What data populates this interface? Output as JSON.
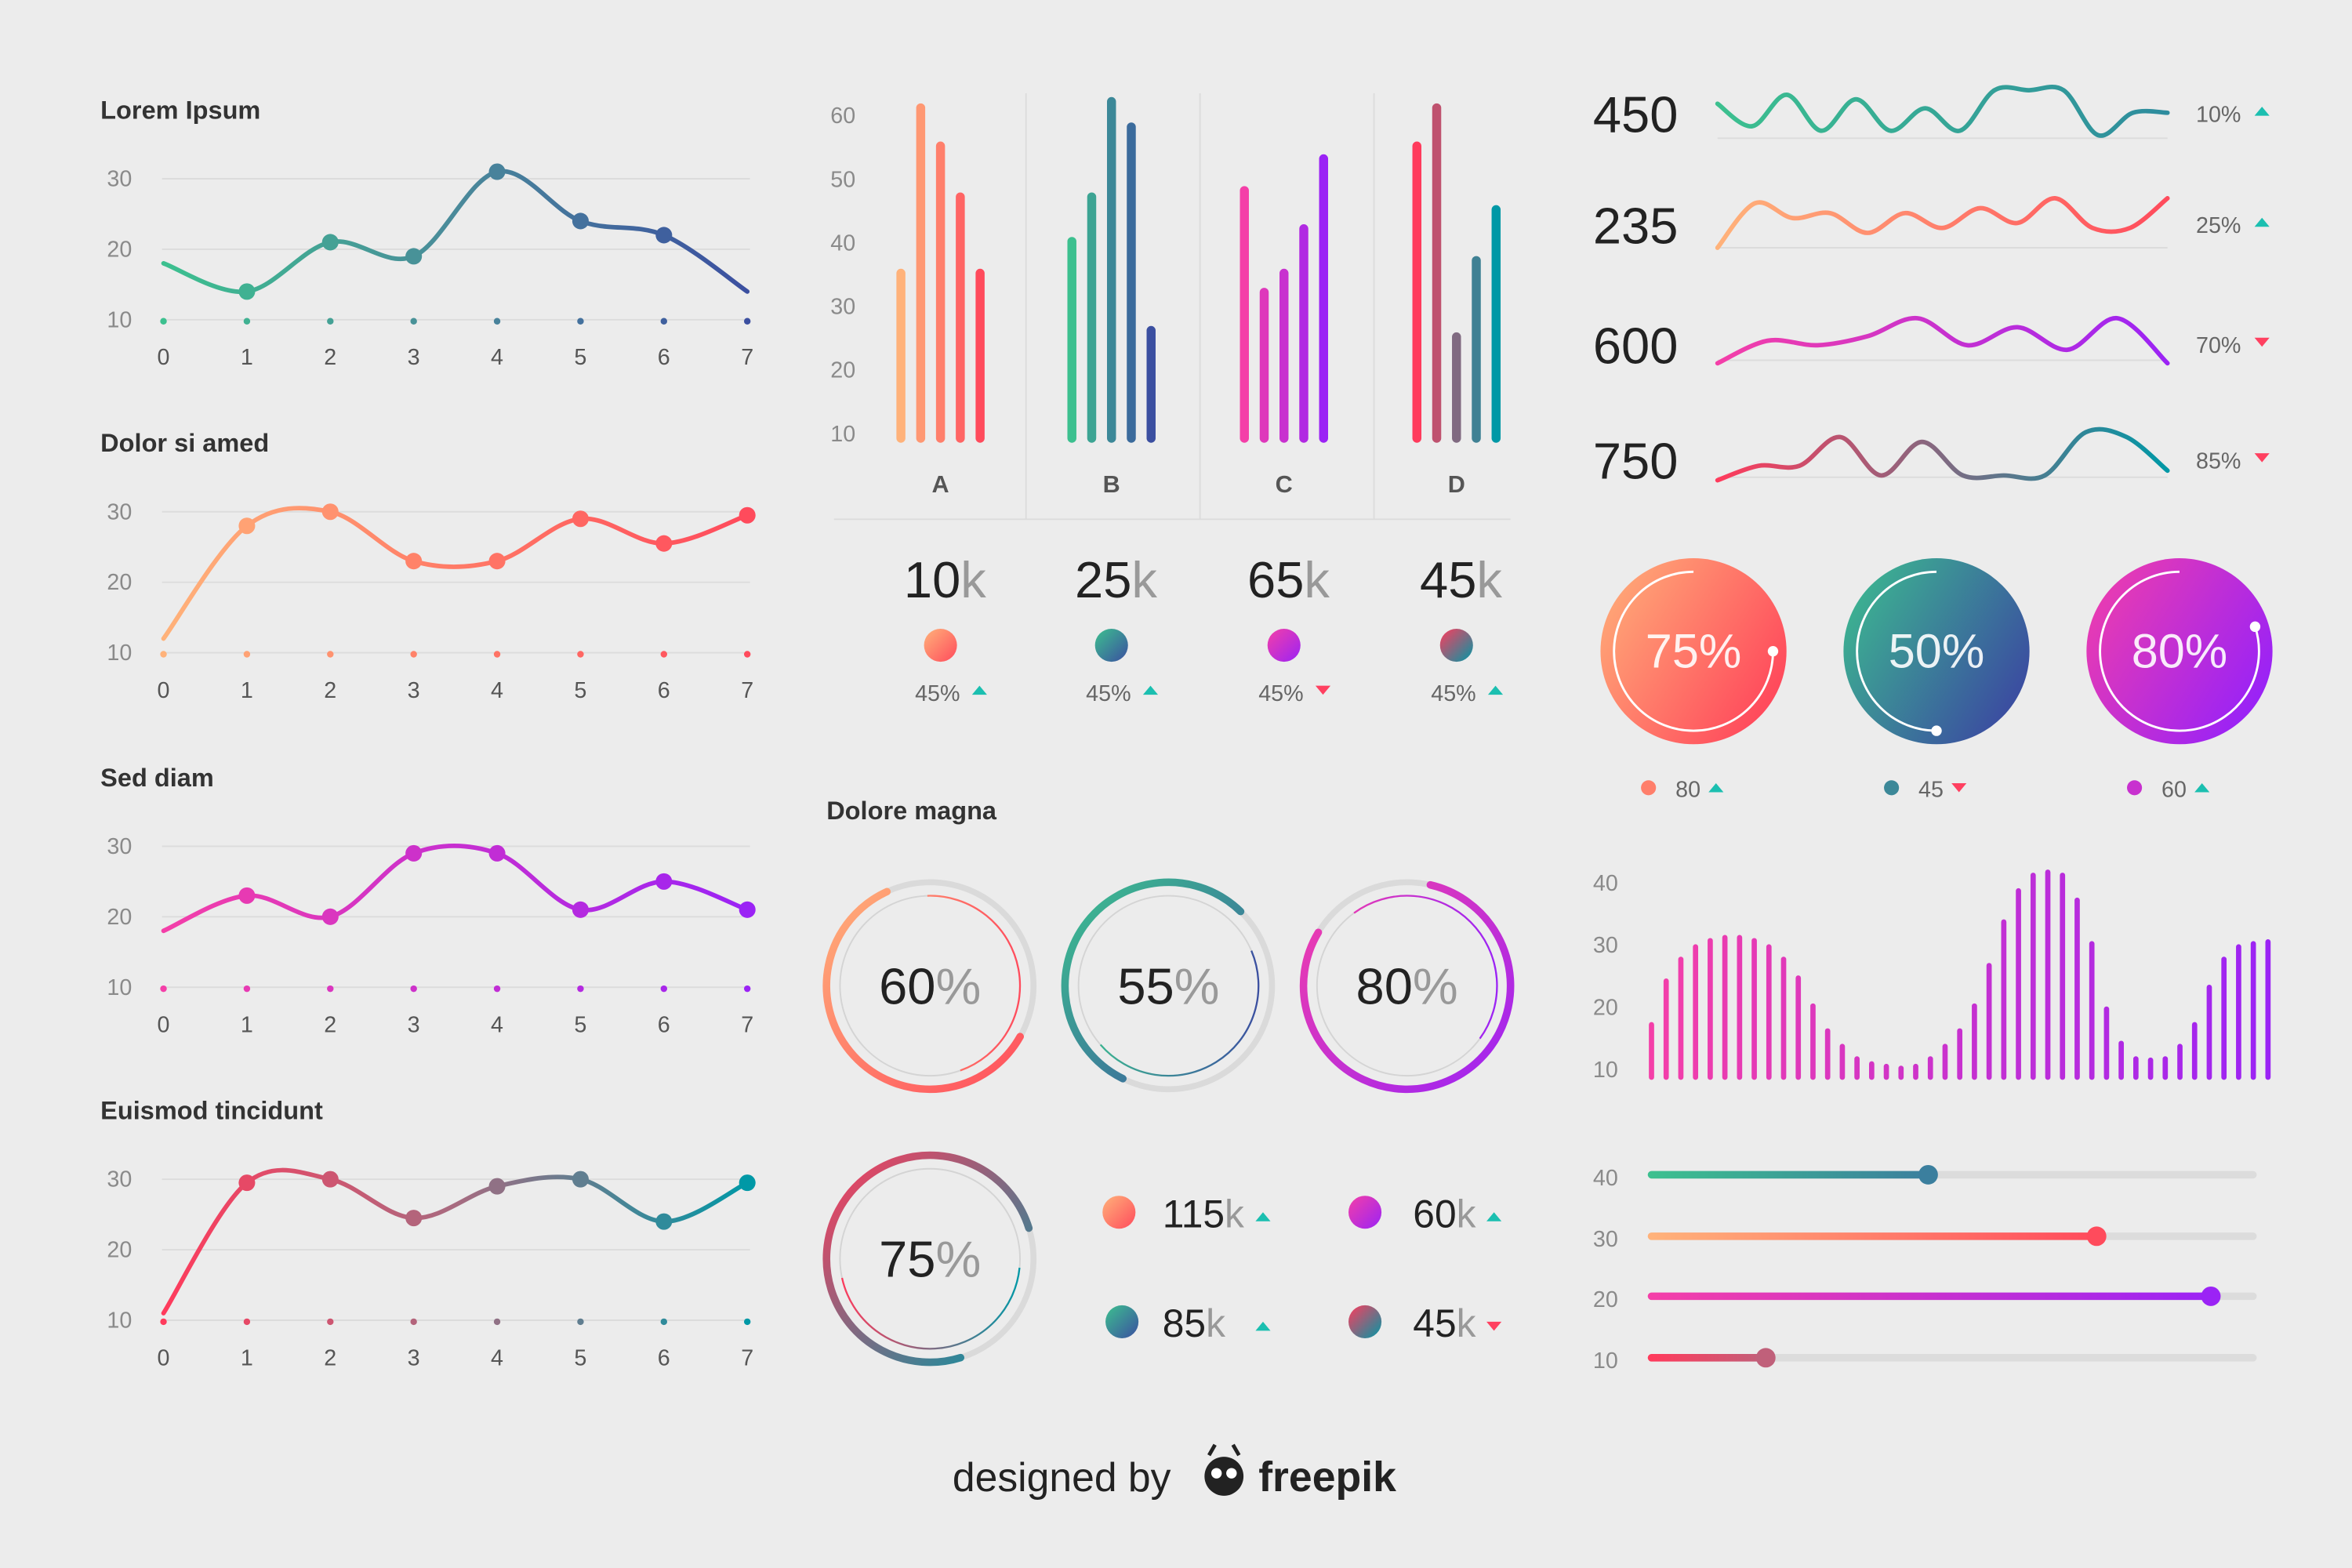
{
  "colors": {
    "up": "#1bbfb0",
    "down": "#ff4060",
    "axis_text": "#8a8a8a",
    "grid": "#dcdcdc",
    "background": "#ececec"
  },
  "line_charts": [
    {
      "title": "Lorem Ipsum",
      "x_ticks": [
        0,
        1,
        2,
        3,
        4,
        5,
        6,
        7
      ],
      "y_ticks": [
        10,
        20,
        30
      ],
      "values": [
        18,
        14,
        21,
        19,
        31,
        24,
        22,
        14
      ],
      "dots": [
        1,
        2,
        3,
        4,
        5,
        6
      ],
      "colors": [
        "#3cc08f",
        "#4a8a9a",
        "#3b4fa0"
      ]
    },
    {
      "title": "Dolor si amed",
      "x_ticks": [
        0,
        1,
        2,
        3,
        4,
        5,
        6,
        7
      ],
      "y_ticks": [
        10,
        20,
        30
      ],
      "values": [
        12,
        28,
        30,
        23,
        23,
        29,
        25.5,
        29.5
      ],
      "dots": [
        1,
        2,
        3,
        4,
        5,
        6,
        7
      ],
      "colors": [
        "#ffb27a",
        "#ff7a66",
        "#ff4b5c"
      ]
    },
    {
      "title": "Sed diam",
      "x_ticks": [
        0,
        1,
        2,
        3,
        4,
        5,
        6,
        7
      ],
      "y_ticks": [
        10,
        20,
        30
      ],
      "values": [
        18,
        23,
        20,
        29,
        29,
        21,
        25,
        21
      ],
      "dots": [
        1,
        2,
        3,
        4,
        5,
        6,
        7
      ],
      "colors": [
        "#f43fa8",
        "#c72fd0",
        "#9b23f5"
      ]
    },
    {
      "title": "Euismod tincidunt",
      "x_ticks": [
        0,
        1,
        2,
        3,
        4,
        5,
        6,
        7
      ],
      "y_ticks": [
        10,
        20,
        30
      ],
      "values": [
        11,
        29.5,
        30,
        24.5,
        29,
        30,
        24,
        29.5
      ],
      "dots": [
        1,
        2,
        3,
        4,
        5,
        6,
        7
      ],
      "colors": [
        "#ff3b5c",
        "#a86b80",
        "#0098a6"
      ]
    }
  ],
  "bar_chart": {
    "y_ticks": [
      10,
      20,
      30,
      40,
      50,
      60
    ],
    "groups": [
      {
        "label": "A",
        "values": [
          35,
          61,
          55,
          47,
          35
        ],
        "total": "10",
        "unit": "k",
        "change": "45%",
        "trend": "up",
        "colors": [
          "#ffb27a",
          "#ff4b5c"
        ]
      },
      {
        "label": "B",
        "values": [
          40,
          47,
          62,
          58,
          26
        ],
        "total": "25",
        "unit": "k",
        "change": "45%",
        "trend": "up",
        "colors": [
          "#3cc08f",
          "#3b4fa0"
        ]
      },
      {
        "label": "C",
        "values": [
          48,
          32,
          35,
          42,
          53
        ],
        "total": "65",
        "unit": "k",
        "change": "45%",
        "trend": "down",
        "colors": [
          "#f43fa8",
          "#9b23f5"
        ]
      },
      {
        "label": "D",
        "values": [
          55,
          61,
          25,
          37,
          45
        ],
        "total": "45",
        "unit": "k",
        "change": "45%",
        "trend": "up",
        "colors": [
          "#ff3b5c",
          "#0098a6"
        ]
      }
    ]
  },
  "sparklines": [
    {
      "value": "450",
      "change": "10%",
      "trend": "up",
      "values": [
        7,
        2,
        9,
        1,
        8,
        1,
        6,
        1,
        10,
        10,
        10,
        0,
        5,
        5
      ],
      "colors": [
        "#3cc08f",
        "#2e8c9e"
      ]
    },
    {
      "value": "235",
      "change": "25%",
      "trend": "up",
      "values": [
        0,
        9,
        6,
        7,
        3,
        7,
        4,
        8,
        5,
        10,
        4,
        4,
        10
      ],
      "colors": [
        "#ffb27a",
        "#ff4b5c"
      ]
    },
    {
      "value": "600",
      "change": "70%",
      "trend": "down",
      "values": [
        0,
        5,
        4,
        6,
        10,
        4,
        8,
        3,
        10,
        0
      ],
      "colors": [
        "#f43fa8",
        "#9b23f5"
      ]
    },
    {
      "value": "750",
      "change": "85%",
      "trend": "down",
      "values": [
        0,
        3,
        3,
        9,
        1,
        8,
        1,
        1,
        1,
        10,
        9,
        2
      ],
      "colors": [
        "#ff3b5c",
        "#0098a6"
      ]
    }
  ],
  "donuts": [
    {
      "percent": 75,
      "label": "75%",
      "value": "80",
      "trend": "up",
      "colors": [
        "#ffb27a",
        "#ff4b5c"
      ]
    },
    {
      "percent": 50,
      "label": "50%",
      "value": "45",
      "trend": "down",
      "colors": [
        "#3cc08f",
        "#3b4fa0"
      ]
    },
    {
      "percent": 80,
      "label": "80%",
      "value": "60",
      "trend": "up",
      "colors": [
        "#f43fa8",
        "#9b23f5"
      ]
    }
  ],
  "dolore": {
    "title": "Dolore magna",
    "rings": [
      {
        "percent": 60,
        "number": "60",
        "unit": "%",
        "colors": [
          "#ffb27a",
          "#ff4b5c"
        ]
      },
      {
        "percent": 55,
        "number": "55",
        "unit": "%",
        "colors": [
          "#3cc08f",
          "#3b4fa0"
        ]
      },
      {
        "percent": 80,
        "number": "80",
        "unit": "%",
        "colors": [
          "#f43fa8",
          "#9b23f5"
        ]
      },
      {
        "percent": 75,
        "number": "75",
        "unit": "%",
        "colors": [
          "#ff3b5c",
          "#0098a6"
        ]
      }
    ],
    "stats": [
      {
        "value": "115",
        "unit": "k",
        "trend": "up",
        "colors": [
          "#ffb27a",
          "#ff4b5c"
        ]
      },
      {
        "value": "60",
        "unit": "k",
        "trend": "up",
        "colors": [
          "#f43fa8",
          "#9b23f5"
        ]
      },
      {
        "value": "85",
        "unit": "k",
        "trend": "up",
        "colors": [
          "#3cc08f",
          "#3b4fa0"
        ]
      },
      {
        "value": "45",
        "unit": "k",
        "trend": "down",
        "colors": [
          "#ff3b5c",
          "#0098a6"
        ]
      }
    ]
  },
  "spike_chart": {
    "y_ticks": [
      10,
      20,
      30,
      40
    ],
    "values": [
      17,
      24,
      27.5,
      29.5,
      30.5,
      31,
      31,
      30.5,
      29.5,
      27.5,
      24.5,
      20,
      16,
      13.5,
      11.5,
      10.7,
      10.3,
      10,
      10.3,
      11.5,
      13.5,
      16,
      20,
      26.5,
      33.5,
      38.5,
      41,
      41.5,
      41,
      37,
      30,
      19.5,
      14,
      11.5,
      11.3,
      11.5,
      13.5,
      17,
      23,
      27.5,
      29.5,
      30,
      30.3
    ],
    "colors": [
      "#f43fa8",
      "#9b23f5"
    ]
  },
  "sliders": [
    {
      "label": "40",
      "fraction": 0.46,
      "colors": [
        "#3cc08f",
        "#3b7f9e"
      ]
    },
    {
      "label": "30",
      "fraction": 0.74,
      "colors": [
        "#ffb27a",
        "#ff4b5c"
      ]
    },
    {
      "label": "20",
      "fraction": 0.93,
      "colors": [
        "#f43fa8",
        "#9b23f5"
      ]
    },
    {
      "label": "10",
      "fraction": 0.19,
      "colors": [
        "#ff3b5c",
        "#c0607a"
      ]
    }
  ],
  "footer": {
    "text": "designed by",
    "brand": "freepik",
    "logo_icon": "freepik-bee-icon"
  }
}
